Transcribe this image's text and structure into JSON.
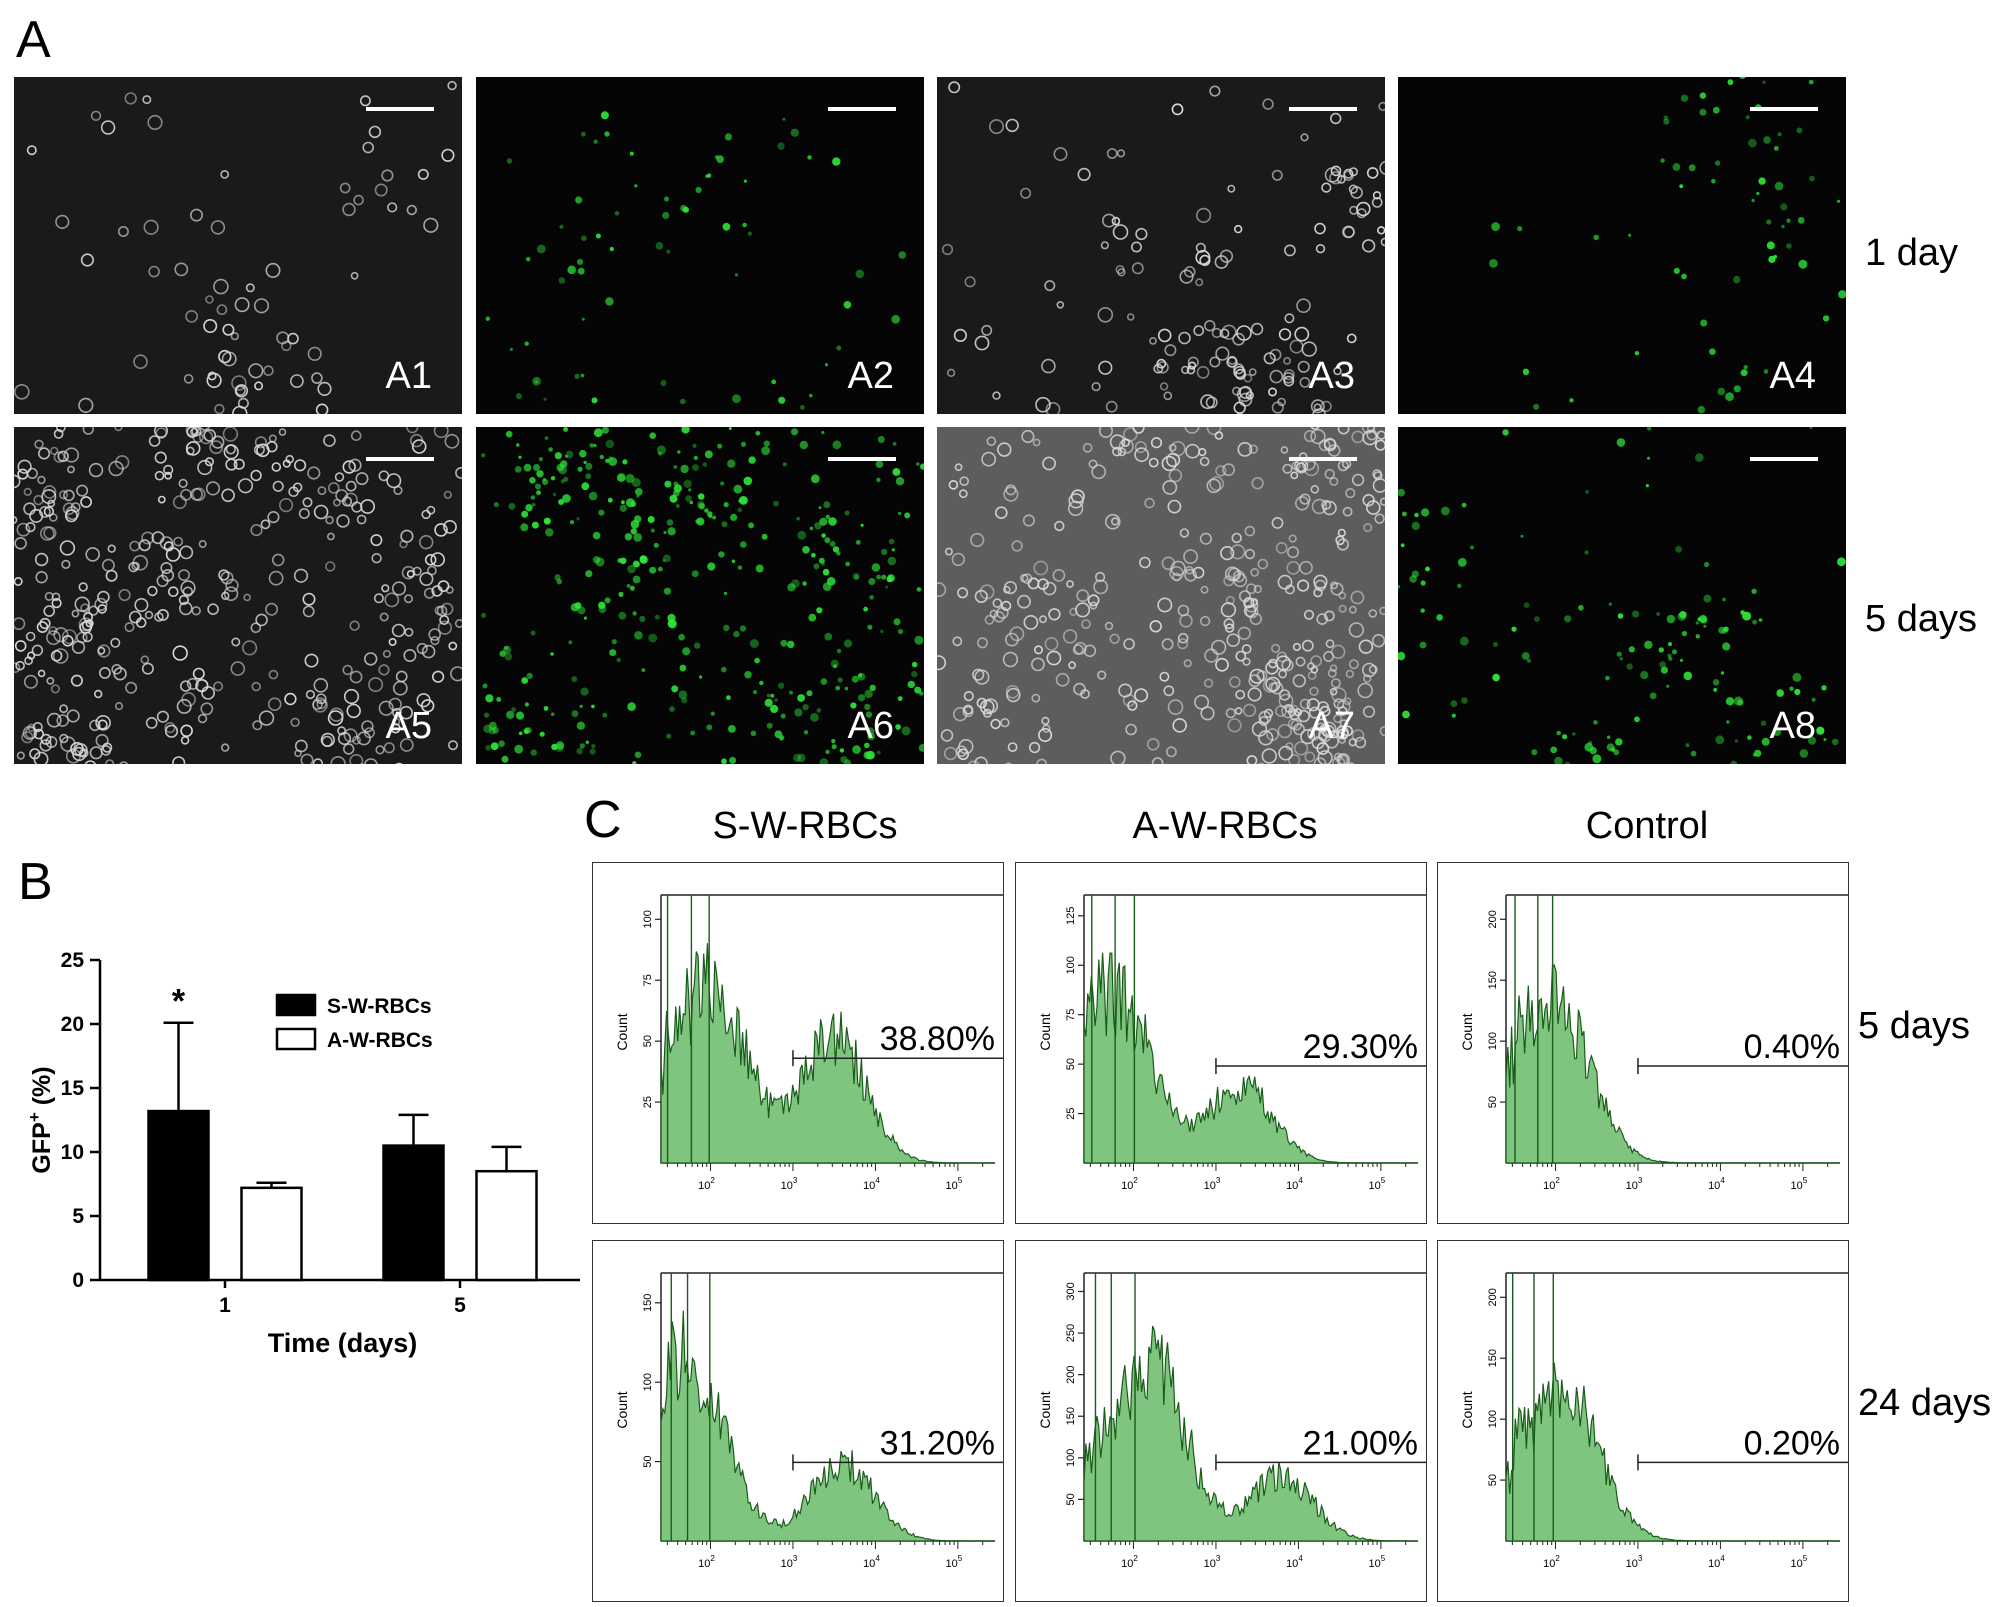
{
  "panel_letters": {
    "a": "A",
    "b": "B",
    "c": "C"
  },
  "panel_a": {
    "row_labels": [
      "1 day",
      "5 days"
    ],
    "images": [
      {
        "label": "A1",
        "kind": "brightfield",
        "density": "sparse"
      },
      {
        "label": "A2",
        "kind": "fluorescence",
        "density": "sparse"
      },
      {
        "label": "A3",
        "kind": "brightfield",
        "density": "medium"
      },
      {
        "label": "A4",
        "kind": "fluorescence",
        "density": "sparse"
      },
      {
        "label": "A5",
        "kind": "brightfield",
        "density": "dense"
      },
      {
        "label": "A6",
        "kind": "fluorescence",
        "density": "dense"
      },
      {
        "label": "A7",
        "kind": "brightfield-gray",
        "density": "dense"
      },
      {
        "label": "A8",
        "kind": "fluorescence",
        "density": "medium"
      }
    ],
    "colors": {
      "fluorescence": "#2ee83a",
      "brightfield_edge": "#d8d8d8",
      "brightfield_gray_bg": "#5d5d5d"
    }
  },
  "chart_data": [
    {
      "type": "bar",
      "ylabel_main": "GFP",
      "ylabel_sup": "+",
      "ylabel_rest": " (%)",
      "xlabel": "Time (days)",
      "categories": [
        "1",
        "5"
      ],
      "series": [
        {
          "name": "S-W-RBCs",
          "values": [
            13.2,
            10.5
          ],
          "errors": [
            6.9,
            2.4
          ],
          "color": "#000000"
        },
        {
          "name": "A-W-RBCs",
          "values": [
            7.2,
            8.5
          ],
          "errors": [
            0.4,
            1.9
          ],
          "color": "#ffffff"
        }
      ],
      "ylim": [
        0,
        25
      ],
      "yticks": [
        "0",
        "5",
        "10",
        "15",
        "20",
        "25"
      ],
      "annotations": [
        {
          "category": "1",
          "series": "S-W-RBCs",
          "text": "*"
        }
      ],
      "legend": "top-right"
    },
    {
      "type": "histogram-grid",
      "column_titles": [
        "S-W-RBCs",
        "A-W-RBCs",
        "Control"
      ],
      "row_labels": [
        "5 days",
        "24 days"
      ],
      "ylabel": "Count",
      "x_scale": "log",
      "x_ticks": [
        "10",
        "10",
        "10",
        "10"
      ],
      "x_tick_exponents": [
        "2",
        "3",
        "4",
        "5"
      ],
      "fill_color": "#7fc47f",
      "line_color": "#1a5c1a",
      "panels": [
        {
          "row": 0,
          "col": 0,
          "percent": "38.80%",
          "yticks": [
            "25",
            "50",
            "75",
            "100"
          ],
          "peaks": [
            {
              "logx": 2.0,
              "h": 0.72
            },
            {
              "logx": 3.5,
              "h": 0.5
            }
          ],
          "gate_start_logx": 3.0,
          "gate_level": 0.4
        },
        {
          "row": 0,
          "col": 1,
          "percent": "29.30%",
          "yticks": [
            "25",
            "50",
            "75",
            "100",
            "125"
          ],
          "peaks": [
            {
              "logx": 1.8,
              "h": 0.66
            },
            {
              "logx": 3.3,
              "h": 0.3
            }
          ],
          "gate_start_logx": 3.0,
          "gate_level": 0.37
        },
        {
          "row": 0,
          "col": 2,
          "percent": "0.40%",
          "yticks": [
            "50",
            "100",
            "150",
            "200"
          ],
          "peaks": [
            {
              "logx": 2.0,
              "h": 0.62
            }
          ],
          "gate_start_logx": 3.0,
          "gate_level": 0.37
        },
        {
          "row": 1,
          "col": 0,
          "percent": "31.20%",
          "yticks": [
            "50",
            "100",
            "150"
          ],
          "peaks": [
            {
              "logx": 1.8,
              "h": 0.6
            },
            {
              "logx": 3.6,
              "h": 0.3
            }
          ],
          "gate_start_logx": 3.0,
          "gate_level": 0.3
        },
        {
          "row": 1,
          "col": 1,
          "percent": "21.00%",
          "yticks": [
            "50",
            "100",
            "150",
            "200",
            "250",
            "300"
          ],
          "peaks": [
            {
              "logx": 2.2,
              "h": 0.72
            },
            {
              "logx": 3.8,
              "h": 0.25
            }
          ],
          "gate_start_logx": 3.0,
          "gate_level": 0.3
        },
        {
          "row": 1,
          "col": 2,
          "percent": "0.20%",
          "yticks": [
            "50",
            "100",
            "150",
            "200"
          ],
          "peaks": [
            {
              "logx": 2.1,
              "h": 0.6
            }
          ],
          "gate_start_logx": 3.0,
          "gate_level": 0.3
        }
      ]
    }
  ]
}
